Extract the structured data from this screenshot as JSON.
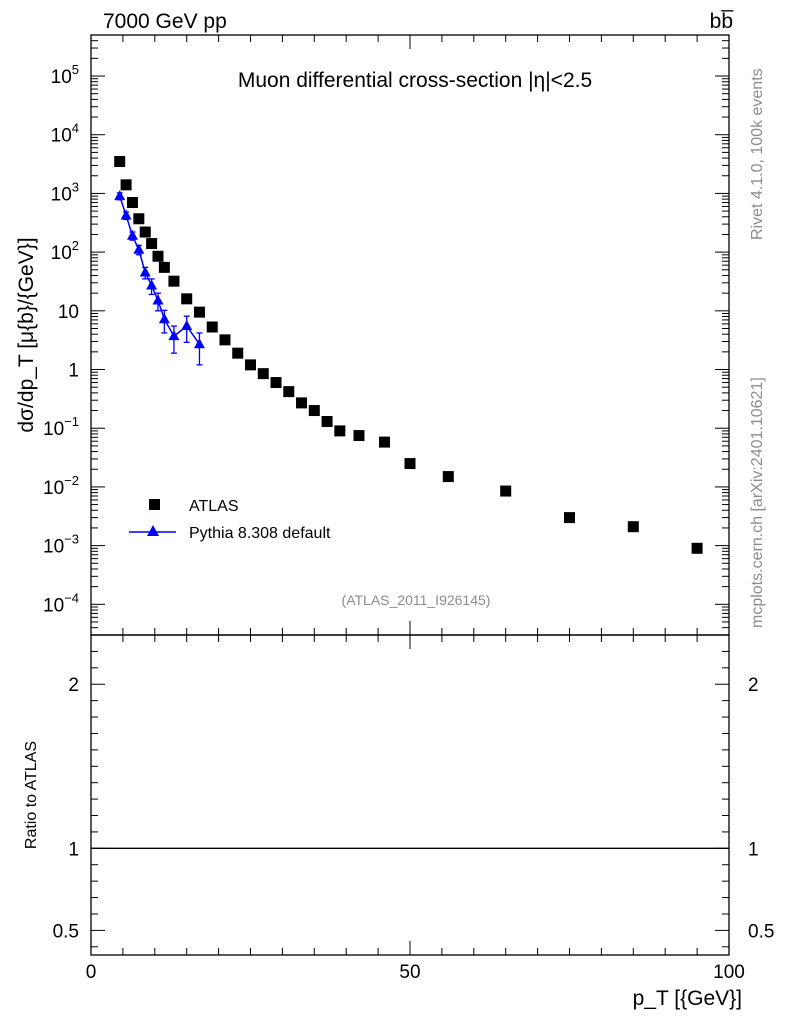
{
  "header": {
    "energy_label": "7000 GeV pp",
    "process_label": "bb̅"
  },
  "side": {
    "rivet": "Rivet 4.1.0,  100k events",
    "mcplots": "mcplots.cern.ch [arXiv:2401.10621]"
  },
  "chart_data": {
    "type": "scatter",
    "title": "Muon differential cross-section |η|<2.5",
    "analysis_tag": "(ATLAS_2011_I926145)",
    "xlabel": "p_T [{GeV}]",
    "ylabel": "dσ/dp_T [μ{b}/{GeV}]",
    "ratio_ylabel": "Ratio to ATLAS",
    "xlim": [
      0,
      100
    ],
    "ylim": [
      3e-05,
      500000
    ],
    "ratio_ylim": [
      0.35,
      2.3
    ],
    "x_ticks": [
      "0",
      "50",
      "100"
    ],
    "y_ticks": [
      {
        "v": 100000,
        "base": "10",
        "exp": "5"
      },
      {
        "v": 10000,
        "base": "10",
        "exp": "4"
      },
      {
        "v": 1000,
        "base": "10",
        "exp": "3"
      },
      {
        "v": 100,
        "base": "10",
        "exp": "2"
      },
      {
        "v": 10,
        "base": "10",
        "exp": ""
      },
      {
        "v": 1,
        "base": "1",
        "exp": ""
      },
      {
        "v": 0.1,
        "base": "10",
        "exp": "−1"
      },
      {
        "v": 0.01,
        "base": "10",
        "exp": "−2"
      },
      {
        "v": 0.001,
        "base": "10",
        "exp": "−3"
      },
      {
        "v": 0.0001,
        "base": "10",
        "exp": "−4"
      }
    ],
    "ratio_ticks": [
      {
        "v": 2,
        "label": "2"
      },
      {
        "v": 1,
        "label": "1"
      },
      {
        "v": 0.5,
        "label": "0.5"
      }
    ],
    "series": [
      {
        "name": "ATLAS",
        "style": "marker-square",
        "color": "#000000",
        "x": [
          4.5,
          5.5,
          6.5,
          7.5,
          8.5,
          9.5,
          10.5,
          11.5,
          13,
          15,
          17,
          19,
          21,
          23,
          25,
          27,
          29,
          31,
          33,
          35,
          37,
          39,
          42,
          46,
          50,
          56,
          65,
          75,
          85,
          95
        ],
        "y": [
          3500,
          1400,
          700,
          370,
          220,
          140,
          85,
          55,
          32,
          16,
          9.5,
          5.3,
          3.2,
          1.9,
          1.2,
          0.85,
          0.6,
          0.42,
          0.27,
          0.2,
          0.13,
          0.09,
          0.075,
          0.058,
          0.025,
          0.015,
          0.0085,
          0.003,
          0.0021,
          0.0009
        ]
      },
      {
        "name": "Pythia 8.308 default",
        "style": "line-triangle",
        "color": "#0000ff",
        "x": [
          4.5,
          5.5,
          6.5,
          7.5,
          8.5,
          9.5,
          10.5,
          11.5,
          13,
          15,
          17
        ],
        "y": [
          900,
          420,
          190,
          110,
          45,
          27,
          15,
          7.2,
          3.7,
          5.5,
          2.7
        ],
        "err_lo": [
          120,
          60,
          30,
          20,
          10,
          8,
          5,
          3,
          1.8,
          2.6,
          1.5
        ],
        "err_hi": [
          120,
          60,
          30,
          20,
          10,
          8,
          5,
          3,
          1.8,
          2.6,
          1.5
        ]
      }
    ]
  }
}
